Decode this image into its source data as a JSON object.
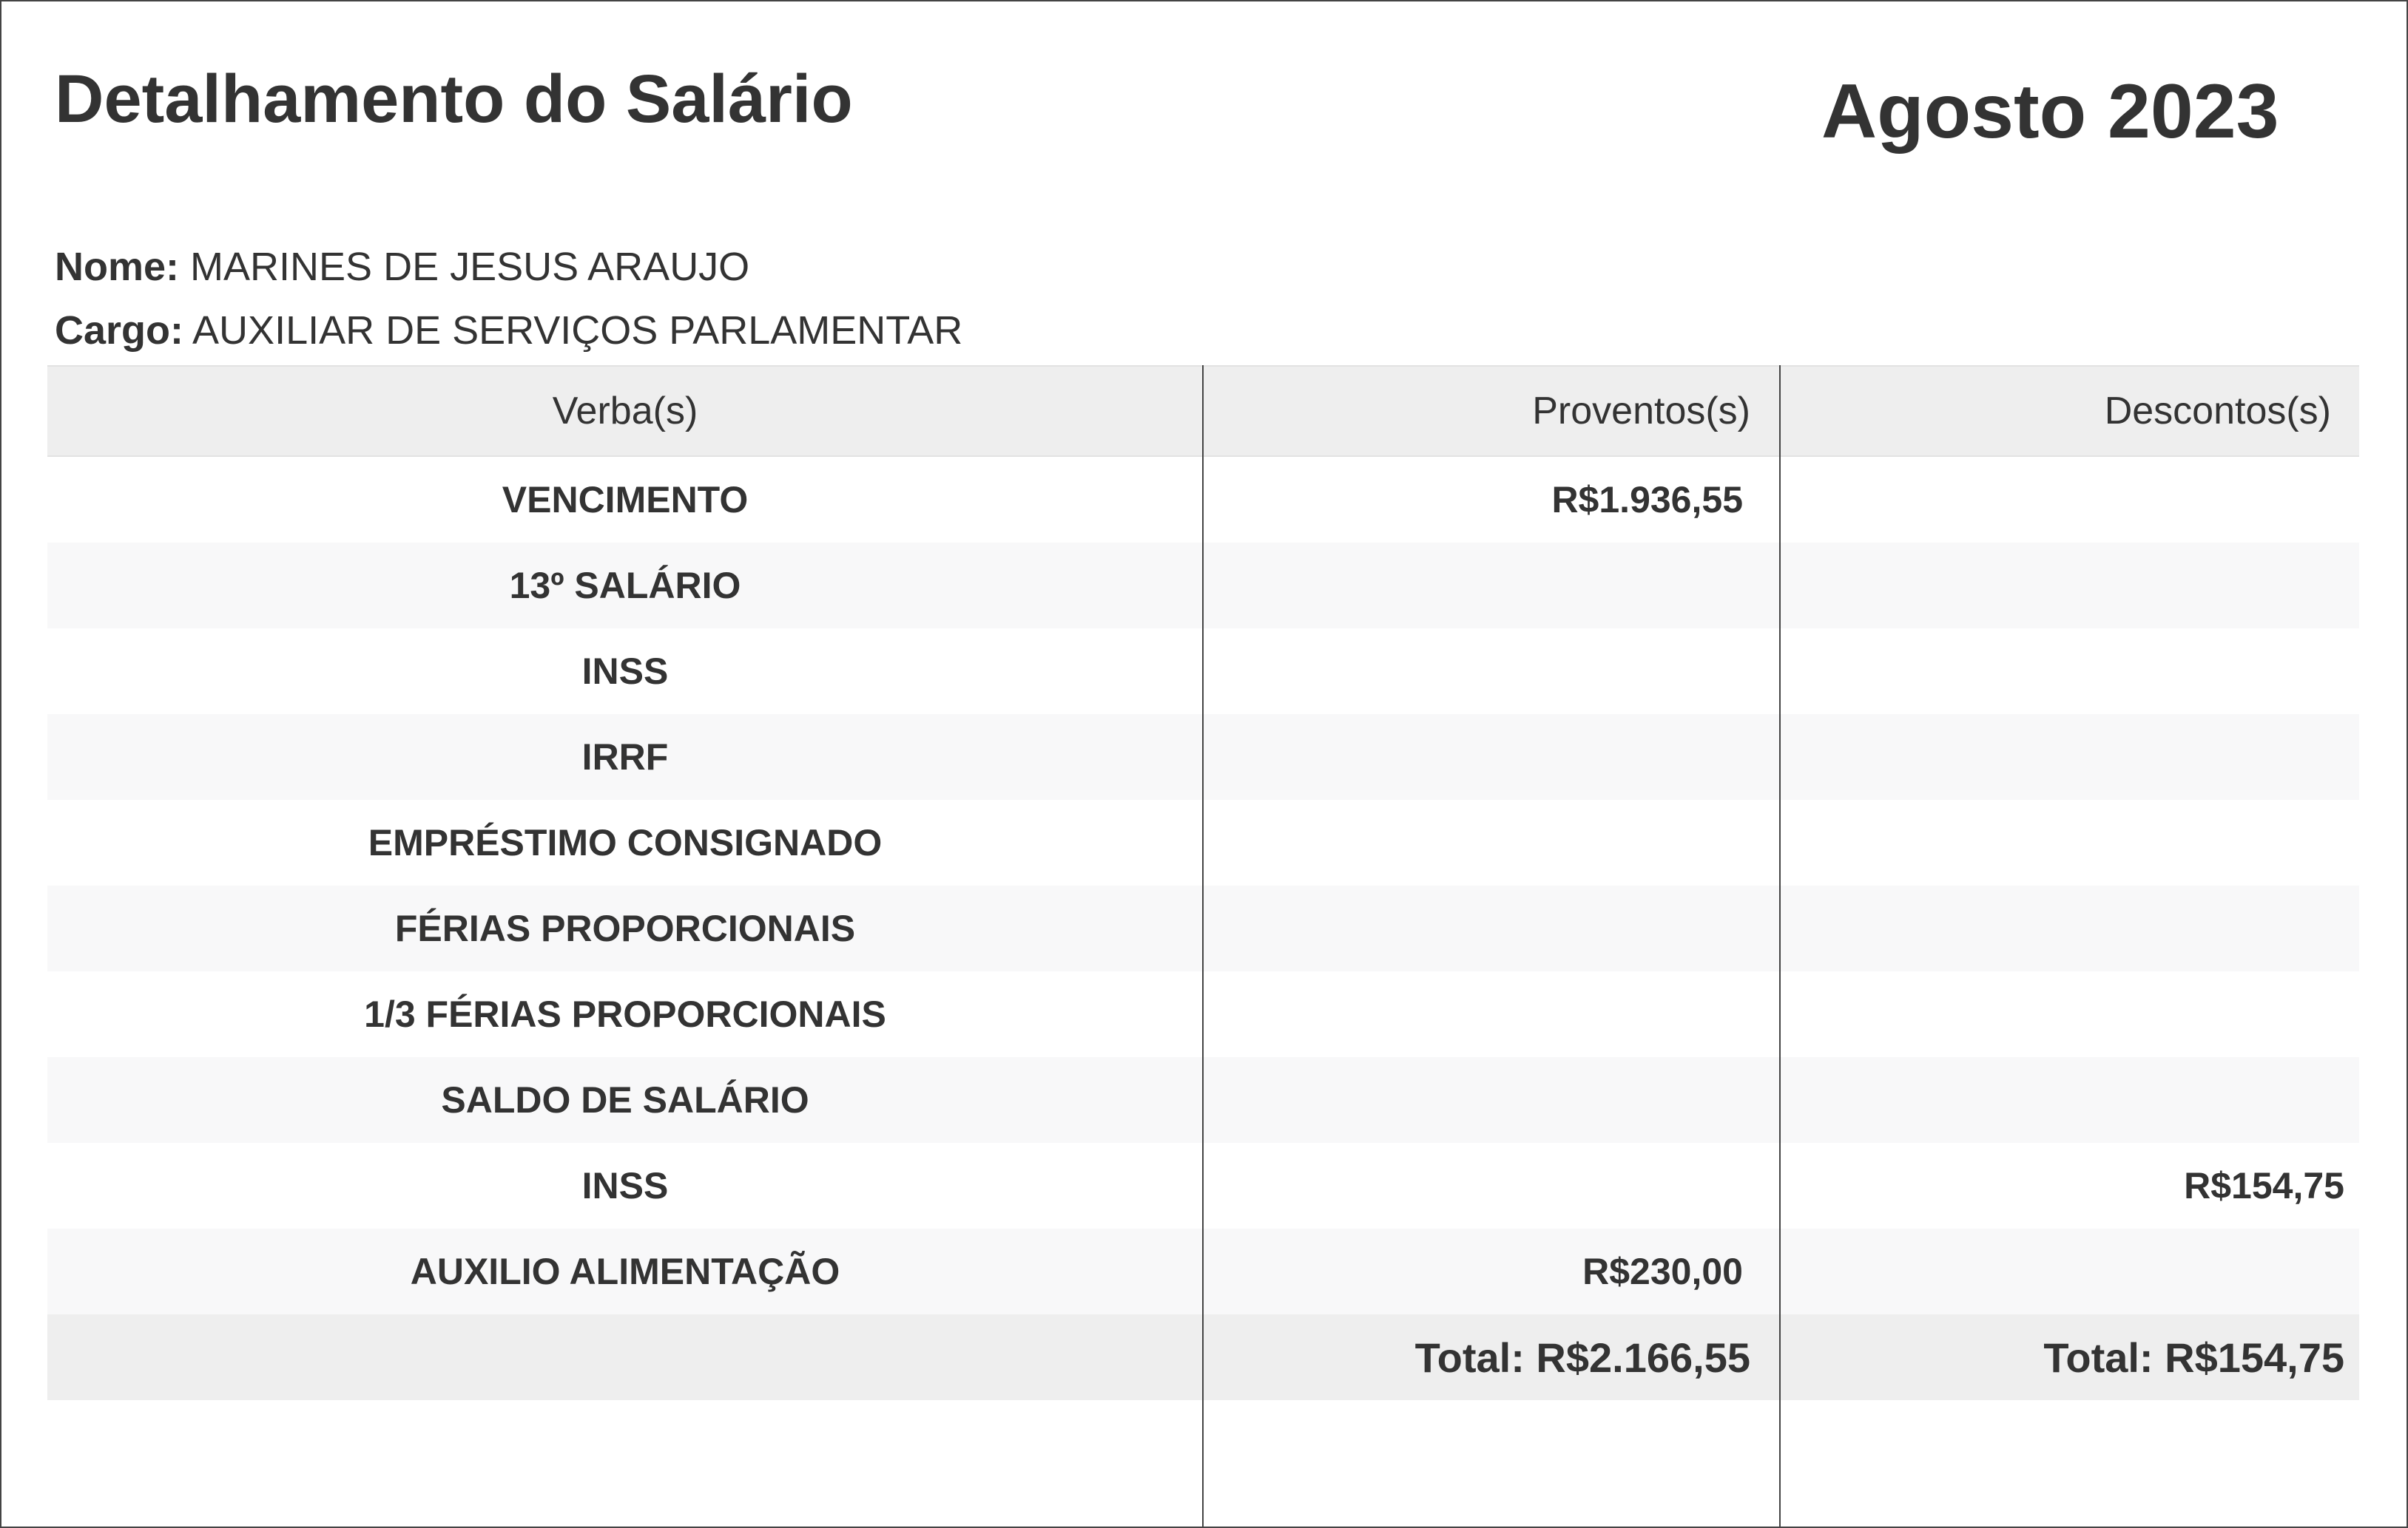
{
  "header": {
    "title": "Detalhamento do Salário",
    "period": "Agosto 2023"
  },
  "employee": {
    "name_label": "Nome:",
    "name": "MARINES DE JESUS ARAUJO",
    "role_label": "Cargo:",
    "role": "AUXILIAR DE SERVIÇOS PARLAMENTAR"
  },
  "table": {
    "columns": [
      "Verba(s)",
      "Proventos(s)",
      "Descontos(s)"
    ],
    "rows": [
      {
        "verba": "VENCIMENTO",
        "proventos": "R$1.936,55",
        "descontos": ""
      },
      {
        "verba": "13º SALÁRIO",
        "proventos": "",
        "descontos": ""
      },
      {
        "verba": "INSS",
        "proventos": "",
        "descontos": ""
      },
      {
        "verba": "IRRF",
        "proventos": "",
        "descontos": ""
      },
      {
        "verba": "EMPRÉSTIMO CONSIGNADO",
        "proventos": "",
        "descontos": ""
      },
      {
        "verba": "FÉRIAS PROPORCIONAIS",
        "proventos": "",
        "descontos": ""
      },
      {
        "verba": "1/3 FÉRIAS PROPORCIONAIS",
        "proventos": "",
        "descontos": ""
      },
      {
        "verba": "SALDO DE SALÁRIO",
        "proventos": "",
        "descontos": ""
      },
      {
        "verba": "INSS",
        "proventos": "",
        "descontos": "R$154,75"
      },
      {
        "verba": "AUXILIO ALIMENTAÇÃO",
        "proventos": "R$230,00",
        "descontos": ""
      }
    ],
    "totals": {
      "proventos": "Total: R$2.166,55",
      "descontos": "Total: R$154,75"
    }
  }
}
